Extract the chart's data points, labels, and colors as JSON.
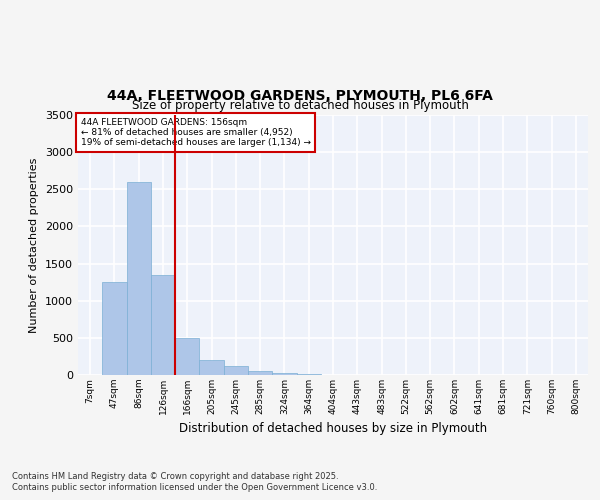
{
  "title_line1": "44A, FLEETWOOD GARDENS, PLYMOUTH, PL6 6FA",
  "title_line2": "Size of property relative to detached houses in Plymouth",
  "xlabel": "Distribution of detached houses by size in Plymouth",
  "ylabel": "Number of detached properties",
  "bin_labels": [
    "7sqm",
    "47sqm",
    "86sqm",
    "126sqm",
    "166sqm",
    "205sqm",
    "245sqm",
    "285sqm",
    "324sqm",
    "364sqm",
    "404sqm",
    "443sqm",
    "483sqm",
    "522sqm",
    "562sqm",
    "602sqm",
    "641sqm",
    "681sqm",
    "721sqm",
    "760sqm",
    "800sqm"
  ],
  "values": [
    5,
    1250,
    2600,
    1350,
    500,
    200,
    120,
    50,
    30,
    15,
    5,
    2,
    0,
    0,
    0,
    0,
    0,
    0,
    0,
    0,
    0
  ],
  "bar_color": "#aec6e8",
  "bar_edge_color": "#7bafd4",
  "vline_color": "#cc0000",
  "property_label": "44A FLEETWOOD GARDENS: 156sqm",
  "smaller_pct": 81,
  "smaller_count": "4,952",
  "larger_pct": 19,
  "larger_count": "1,134",
  "annotation_box_color": "#cc0000",
  "ylim": [
    0,
    3500
  ],
  "yticks": [
    0,
    500,
    1000,
    1500,
    2000,
    2500,
    3000,
    3500
  ],
  "background_color": "#eef2fa",
  "grid_color": "#ffffff",
  "fig_bg_color": "#f5f5f5",
  "footer_line1": "Contains HM Land Registry data © Crown copyright and database right 2025.",
  "footer_line2": "Contains public sector information licensed under the Open Government Licence v3.0."
}
